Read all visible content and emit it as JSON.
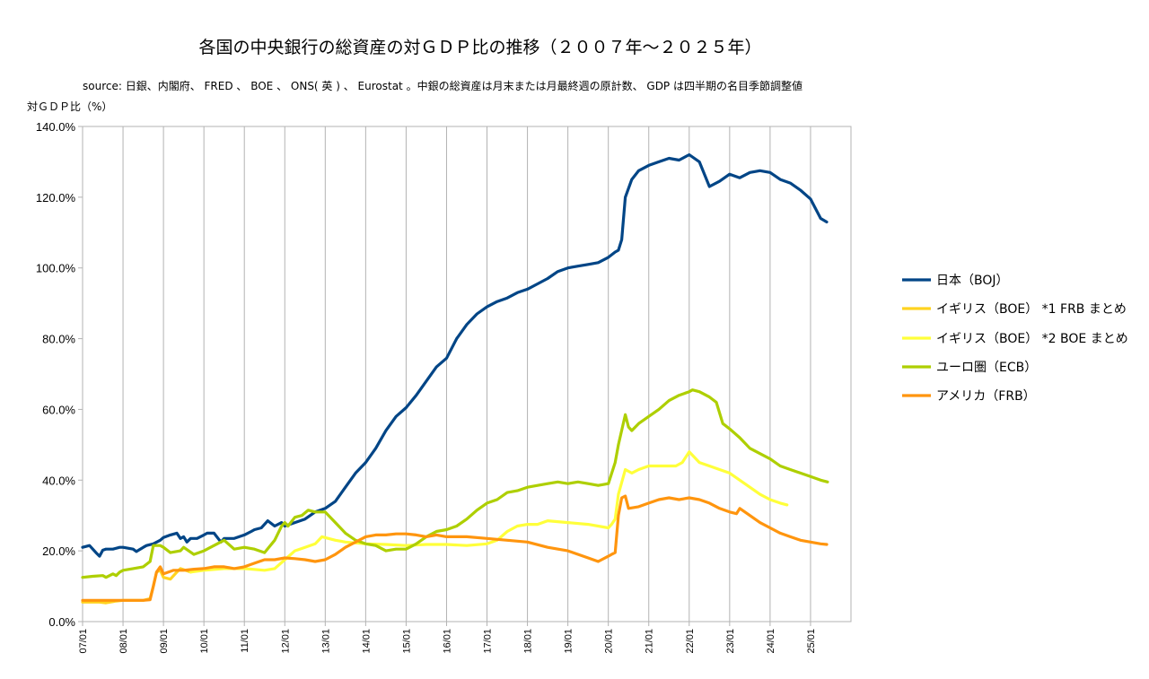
{
  "chart_data": {
    "type": "line",
    "title": "各国の中央銀行の総資産の対ＧＤＰ比の推移（２００７年～２０２５年）",
    "subtitle": "source: 日銀、内閣府、 FRED 、 BOE 、 ONS( 英 ) 、 Eurostat 。中銀の総資産は月末または月最終週の原計数、 GDP は四半期の名目季節調整値",
    "ylabel": "対ＧＤＰ比（%）",
    "ylim": [
      0,
      140
    ],
    "yticks": [
      0,
      20,
      40,
      60,
      80,
      100,
      120,
      140
    ],
    "ytick_labels": [
      "0.0%",
      "20.0%",
      "40.0%",
      "60.0%",
      "80.0%",
      "100.0%",
      "120.0%",
      "140.0%"
    ],
    "x_unit": "year",
    "xlim": [
      2007.0,
      2026.0
    ],
    "xtick_labels": [
      "07/01",
      "08/01",
      "09/01",
      "10/01",
      "11/01",
      "12/01",
      "13/01",
      "14/01",
      "15/01",
      "16/01",
      "17/01",
      "18/01",
      "19/01",
      "20/01",
      "21/01",
      "22/01",
      "23/01",
      "24/01",
      "25/01"
    ],
    "grid": "vertical",
    "legend_position": "right",
    "series": [
      {
        "name": "日本（BOJ）",
        "color": "#004586",
        "x": [
          2007.0,
          2007.17,
          2007.33,
          2007.42,
          2007.5,
          2007.58,
          2007.75,
          2007.92,
          2008.0,
          2008.25,
          2008.33,
          2008.5,
          2008.58,
          2008.75,
          2008.92,
          2009.0,
          2009.17,
          2009.33,
          2009.42,
          2009.5,
          2009.58,
          2009.67,
          2009.83,
          2010.0,
          2010.08,
          2010.25,
          2010.42,
          2010.5,
          2010.75,
          2011.0,
          2011.17,
          2011.25,
          2011.42,
          2011.58,
          2011.75,
          2011.92,
          2012.0,
          2012.25,
          2012.5,
          2012.75,
          2013.0,
          2013.25,
          2013.5,
          2013.75,
          2014.0,
          2014.25,
          2014.5,
          2014.75,
          2015.0,
          2015.25,
          2015.5,
          2015.75,
          2016.0,
          2016.25,
          2016.5,
          2016.75,
          2017.0,
          2017.25,
          2017.5,
          2017.75,
          2018.0,
          2018.25,
          2018.5,
          2018.75,
          2019.0,
          2019.25,
          2019.5,
          2019.75,
          2020.0,
          2020.17,
          2020.25,
          2020.33,
          2020.42,
          2020.58,
          2020.75,
          2021.0,
          2021.25,
          2021.5,
          2021.75,
          2022.0,
          2022.25,
          2022.5,
          2022.75,
          2023.0,
          2023.25,
          2023.5,
          2023.75,
          2024.0,
          2024.25,
          2024.5,
          2024.75,
          2025.0,
          2025.25,
          2025.4
        ],
        "values": [
          21.0,
          21.5,
          19.5,
          18.5,
          20.2,
          20.5,
          20.5,
          21.0,
          21.0,
          20.5,
          19.8,
          21.0,
          21.5,
          22.0,
          23.0,
          23.8,
          24.5,
          25.0,
          23.5,
          24.0,
          22.5,
          23.5,
          23.5,
          24.5,
          25.0,
          25.0,
          22.5,
          23.5,
          23.5,
          24.5,
          25.5,
          26.0,
          26.5,
          28.5,
          27.0,
          28.0,
          27.0,
          28.0,
          29.0,
          31.0,
          32.0,
          34.0,
          38.0,
          42.0,
          45.0,
          49.0,
          54.0,
          58.0,
          60.5,
          64.0,
          68.0,
          72.0,
          74.5,
          80.0,
          84.0,
          87.0,
          89.0,
          90.5,
          91.5,
          93.0,
          94.0,
          95.5,
          97.0,
          99.0,
          100.0,
          100.5,
          101.0,
          101.5,
          103.0,
          104.5,
          105.0,
          108.0,
          120.0,
          125.0,
          127.5,
          129.0,
          130.0,
          131.0,
          130.5,
          132.0,
          130.0,
          123.0,
          124.5,
          126.5,
          125.5,
          127.0,
          127.5,
          127.0,
          125.0,
          124.0,
          122.0,
          119.5,
          114.0,
          113.0
        ]
      },
      {
        "name": "イギリス（BOE） *1 FRB まとめ",
        "color": "#FFD320",
        "x": [
          2007.0,
          2007.42,
          2007.58,
          2007.83,
          2008.0,
          2008.5,
          2008.67,
          2008.75,
          2008.83,
          2008.92,
          2009.0,
          2009.17,
          2009.33,
          2009.42,
          2009.67
        ],
        "values": [
          5.5,
          5.5,
          5.3,
          5.8,
          6.0,
          6.0,
          6.5,
          10.0,
          14.0,
          14.5,
          12.5,
          12.0,
          14.0,
          15.0,
          14.0
        ]
      },
      {
        "name": "イギリス（BOE） *2 BOE まとめ",
        "color": "#FFFF3A",
        "x": [
          2009.67,
          2010.0,
          2010.5,
          2011.0,
          2011.5,
          2011.75,
          2012.0,
          2012.25,
          2012.5,
          2012.75,
          2012.92,
          2013.25,
          2013.5,
          2014.0,
          2014.5,
          2015.0,
          2015.5,
          2016.0,
          2016.5,
          2017.0,
          2017.25,
          2017.5,
          2017.75,
          2018.0,
          2018.25,
          2018.5,
          2019.0,
          2019.5,
          2020.0,
          2020.08,
          2020.17,
          2020.25,
          2020.42,
          2020.58,
          2020.75,
          2021.0,
          2021.25,
          2021.5,
          2021.67,
          2021.83,
          2022.0,
          2022.25,
          2022.5,
          2022.75,
          2023.0,
          2023.25,
          2023.5,
          2023.75,
          2024.0,
          2024.25,
          2024.42
        ],
        "values": [
          14.0,
          14.5,
          15.0,
          15.0,
          14.5,
          15.0,
          17.5,
          20.0,
          21.0,
          22.0,
          24.0,
          23.0,
          22.5,
          22.0,
          21.8,
          21.5,
          21.8,
          21.8,
          21.5,
          22.0,
          23.0,
          25.5,
          27.0,
          27.5,
          27.5,
          28.5,
          28.0,
          27.5,
          26.5,
          27.5,
          29.0,
          36.0,
          43.0,
          42.0,
          43.0,
          44.0,
          44.0,
          44.0,
          44.0,
          45.0,
          48.0,
          45.0,
          44.0,
          43.0,
          42.0,
          40.0,
          38.0,
          36.0,
          34.5,
          33.5,
          33.0
        ]
      },
      {
        "name": "ユーロ圏（ECB）",
        "color": "#AECF00",
        "x": [
          2007.0,
          2007.25,
          2007.5,
          2007.58,
          2007.75,
          2007.83,
          2007.92,
          2008.0,
          2008.25,
          2008.5,
          2008.67,
          2008.75,
          2008.92,
          2009.0,
          2009.17,
          2009.42,
          2009.5,
          2009.75,
          2010.0,
          2010.25,
          2010.5,
          2010.75,
          2011.0,
          2011.25,
          2011.5,
          2011.75,
          2011.92,
          2012.0,
          2012.08,
          2012.25,
          2012.42,
          2012.58,
          2012.75,
          2013.0,
          2013.25,
          2013.5,
          2013.75,
          2014.0,
          2014.25,
          2014.5,
          2014.75,
          2015.0,
          2015.25,
          2015.5,
          2015.75,
          2016.0,
          2016.25,
          2016.5,
          2016.75,
          2017.0,
          2017.25,
          2017.5,
          2017.75,
          2018.0,
          2018.25,
          2018.5,
          2018.75,
          2019.0,
          2019.25,
          2019.5,
          2019.75,
          2020.0,
          2020.17,
          2020.25,
          2020.42,
          2020.5,
          2020.58,
          2020.75,
          2021.0,
          2021.25,
          2021.5,
          2021.75,
          2022.0,
          2022.08,
          2022.25,
          2022.5,
          2022.67,
          2022.83,
          2023.0,
          2023.25,
          2023.5,
          2023.75,
          2024.0,
          2024.25,
          2024.5,
          2024.75,
          2025.0,
          2025.25,
          2025.42
        ],
        "values": [
          12.5,
          12.8,
          13.0,
          12.5,
          13.5,
          13.0,
          14.0,
          14.5,
          15.0,
          15.5,
          17.0,
          21.5,
          21.5,
          21.0,
          19.5,
          20.0,
          21.0,
          19.0,
          20.0,
          21.5,
          23.0,
          20.5,
          21.0,
          20.5,
          19.5,
          23.0,
          27.0,
          28.0,
          27.0,
          29.5,
          30.0,
          31.5,
          31.0,
          31.0,
          28.0,
          25.0,
          23.0,
          22.0,
          21.5,
          20.0,
          20.5,
          20.5,
          22.0,
          24.0,
          25.5,
          26.0,
          27.0,
          29.0,
          31.5,
          33.5,
          34.5,
          36.5,
          37.0,
          38.0,
          38.5,
          39.0,
          39.5,
          39.0,
          39.5,
          39.0,
          38.5,
          39.0,
          45.0,
          50.0,
          58.5,
          55.0,
          54.0,
          56.0,
          58.0,
          60.0,
          62.5,
          64.0,
          65.0,
          65.5,
          65.0,
          63.5,
          62.0,
          56.0,
          54.5,
          52.0,
          49.0,
          47.5,
          46.0,
          44.0,
          43.0,
          42.0,
          41.0,
          40.0,
          39.5
        ]
      },
      {
        "name": "アメリカ（FRB）",
        "color": "#FF950E",
        "x": [
          2007.0,
          2007.5,
          2008.0,
          2008.5,
          2008.67,
          2008.75,
          2008.83,
          2008.92,
          2009.0,
          2009.25,
          2009.5,
          2009.75,
          2010.0,
          2010.25,
          2010.5,
          2010.75,
          2011.0,
          2011.25,
          2011.5,
          2011.75,
          2012.0,
          2012.25,
          2012.5,
          2012.75,
          2013.0,
          2013.25,
          2013.5,
          2013.75,
          2014.0,
          2014.25,
          2014.5,
          2014.75,
          2015.0,
          2015.25,
          2015.5,
          2015.75,
          2016.0,
          2016.5,
          2017.0,
          2017.5,
          2018.0,
          2018.5,
          2019.0,
          2019.5,
          2019.75,
          2020.0,
          2020.08,
          2020.17,
          2020.25,
          2020.33,
          2020.42,
          2020.5,
          2020.75,
          2021.0,
          2021.25,
          2021.5,
          2021.75,
          2022.0,
          2022.25,
          2022.5,
          2022.75,
          2023.0,
          2023.17,
          2023.25,
          2023.5,
          2023.75,
          2024.0,
          2024.25,
          2024.5,
          2024.75,
          2025.0,
          2025.25,
          2025.4
        ],
        "values": [
          6.0,
          6.0,
          6.0,
          6.0,
          6.2,
          10.0,
          14.0,
          15.5,
          13.5,
          14.5,
          14.5,
          14.8,
          15.0,
          15.5,
          15.5,
          15.0,
          15.5,
          16.5,
          17.5,
          17.5,
          18.0,
          17.8,
          17.5,
          17.0,
          17.5,
          19.0,
          21.0,
          22.5,
          24.0,
          24.5,
          24.5,
          24.8,
          24.8,
          24.5,
          24.0,
          24.5,
          24.0,
          24.0,
          23.5,
          23.0,
          22.5,
          21.0,
          20.0,
          18.0,
          17.0,
          18.5,
          19.0,
          19.5,
          30.0,
          35.0,
          35.5,
          32.0,
          32.5,
          33.5,
          34.5,
          35.0,
          34.5,
          35.0,
          34.5,
          33.5,
          32.0,
          31.0,
          30.5,
          32.0,
          30.0,
          28.0,
          26.5,
          25.0,
          24.0,
          23.0,
          22.5,
          22.0,
          21.8
        ]
      }
    ]
  }
}
